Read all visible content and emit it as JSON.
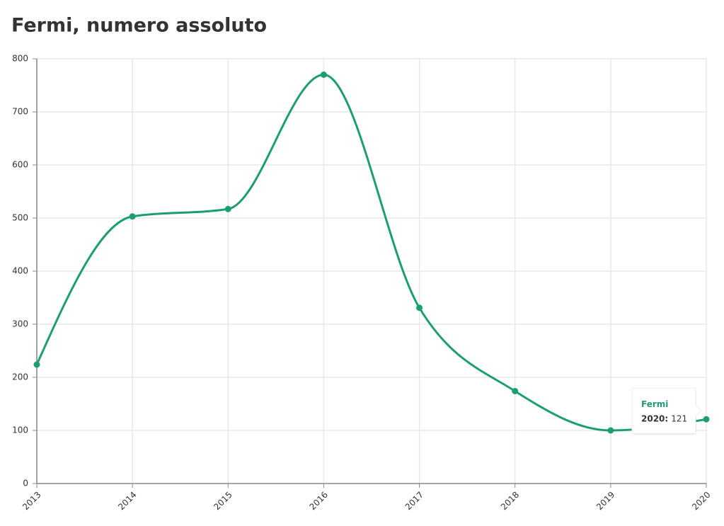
{
  "chart_data": {
    "type": "line",
    "title": "Fermi, numero assoluto",
    "categories": [
      "2013",
      "2014",
      "2015",
      "2016",
      "2017",
      "2018",
      "2019",
      "2020"
    ],
    "series": [
      {
        "name": "Fermi",
        "color": "#1b9e74",
        "values": [
          224,
          503,
          517,
          770,
          331,
          174,
          100,
          121
        ]
      }
    ],
    "ylim": [
      0,
      800
    ],
    "yticks": [
      0,
      100,
      200,
      300,
      400,
      500,
      600,
      700,
      800
    ],
    "grid": true,
    "tooltip": {
      "label": "2020:"
    }
  }
}
